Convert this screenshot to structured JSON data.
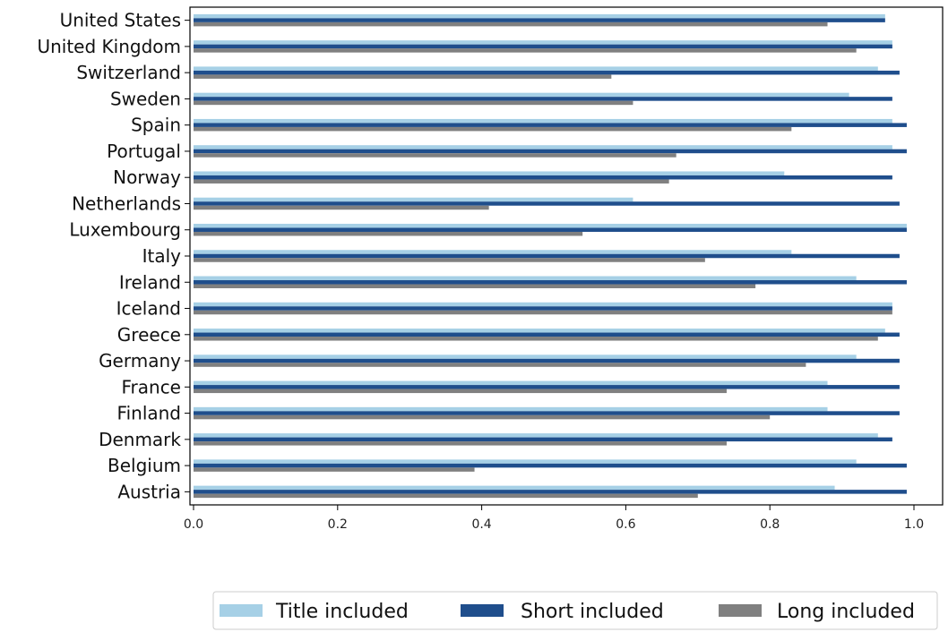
{
  "chart_data": {
    "type": "bar",
    "orientation": "horizontal",
    "categories": [
      "United States",
      "United Kingdom",
      "Switzerland",
      "Sweden",
      "Spain",
      "Portugal",
      "Norway",
      "Netherlands",
      "Luxembourg",
      "Italy",
      "Ireland",
      "Iceland",
      "Greece",
      "Germany",
      "France",
      "Finland",
      "Denmark",
      "Belgium",
      "Austria"
    ],
    "series": [
      {
        "name": "Title included",
        "color": "#a6d0e6",
        "values": [
          0.96,
          0.97,
          0.95,
          0.91,
          0.97,
          0.97,
          0.82,
          0.61,
          0.99,
          0.83,
          0.92,
          0.97,
          0.96,
          0.92,
          0.88,
          0.88,
          0.95,
          0.92,
          0.89
        ]
      },
      {
        "name": "Short included",
        "color": "#1f4e8c",
        "values": [
          0.96,
          0.97,
          0.98,
          0.97,
          0.99,
          0.99,
          0.97,
          0.98,
          0.99,
          0.98,
          0.99,
          0.97,
          0.98,
          0.98,
          0.98,
          0.98,
          0.97,
          0.99,
          0.99
        ]
      },
      {
        "name": "Long included",
        "color": "#808080",
        "values": [
          0.88,
          0.92,
          0.58,
          0.61,
          0.83,
          0.67,
          0.66,
          0.41,
          0.54,
          0.71,
          0.78,
          0.97,
          0.95,
          0.85,
          0.74,
          0.8,
          0.74,
          0.39,
          0.7
        ]
      }
    ],
    "xticks": [
      "0.0",
      "0.2",
      "0.4",
      "0.6",
      "0.8",
      "1.0"
    ],
    "xlim": [
      0,
      1.04
    ],
    "xlabel": "",
    "ylabel": "",
    "title": "",
    "grid": false,
    "legend_position": "bottom-right outside"
  }
}
